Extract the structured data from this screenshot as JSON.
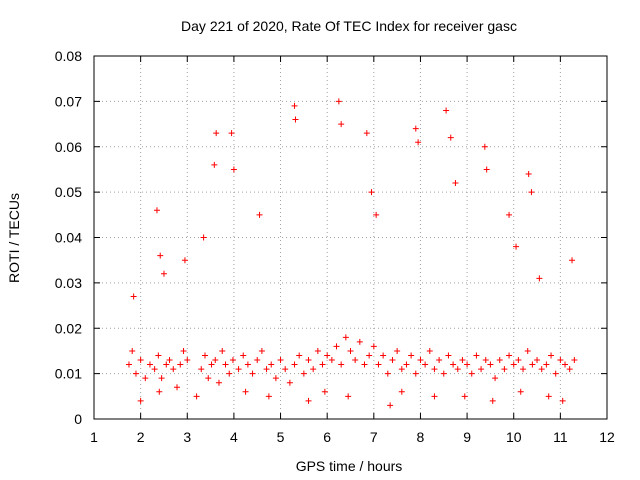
{
  "chart_data": {
    "type": "scatter",
    "title": "Day 221 of 2020, Rate Of TEC Index for receiver gasc",
    "xlabel": "GPS time / hours",
    "ylabel": "ROTI / TECUs",
    "xlim": [
      1,
      12
    ],
    "ylim": [
      0,
      0.08
    ],
    "x_ticks": [
      1,
      2,
      3,
      4,
      5,
      6,
      7,
      8,
      9,
      10,
      11,
      12
    ],
    "x_tick_labels": [
      "1",
      "2",
      "3",
      "4",
      "5",
      "6",
      "7",
      "8",
      "9",
      "10",
      "11",
      "12"
    ],
    "y_ticks": [
      0,
      0.01,
      0.02,
      0.03,
      0.04,
      0.05,
      0.06,
      0.07,
      0.08
    ],
    "y_tick_labels": [
      "0",
      "0.01",
      "0.02",
      "0.03",
      "0.04",
      "0.05",
      "0.06",
      "0.07",
      "0.08"
    ],
    "grid": true,
    "marker": "+",
    "color": "#ff0000",
    "series": [
      {
        "name": "ROTI",
        "x": [
          1.75,
          1.82,
          1.9,
          2.0,
          2.1,
          2.2,
          2.3,
          2.38,
          2.45,
          2.55,
          2.62,
          2.7,
          2.78,
          2.85,
          2.92,
          3.0,
          3.3,
          3.38,
          3.45,
          3.52,
          3.6,
          3.68,
          3.75,
          3.82,
          3.9,
          3.98,
          4.1,
          4.2,
          4.3,
          4.4,
          4.5,
          4.6,
          4.7,
          4.8,
          4.9,
          5.0,
          5.1,
          5.2,
          5.3,
          5.4,
          5.5,
          5.6,
          5.7,
          5.8,
          5.9,
          6.0,
          6.1,
          6.2,
          6.3,
          6.4,
          6.5,
          6.6,
          6.7,
          6.8,
          6.9,
          7.0,
          7.1,
          7.2,
          7.3,
          7.4,
          7.5,
          7.6,
          7.7,
          7.8,
          7.9,
          8.0,
          8.1,
          8.2,
          8.3,
          8.4,
          8.5,
          8.6,
          8.7,
          8.8,
          8.9,
          9.0,
          9.1,
          9.2,
          9.3,
          9.4,
          9.5,
          9.6,
          9.7,
          9.8,
          9.9,
          10.0,
          10.1,
          10.2,
          10.3,
          10.4,
          10.5,
          10.6,
          10.7,
          10.8,
          10.9,
          11.0,
          11.1,
          11.2,
          11.3,
          1.85,
          2.35,
          2.42,
          2.5,
          2.95,
          3.35,
          3.58,
          3.62,
          3.95,
          4.0,
          4.55,
          5.3,
          5.32,
          6.25,
          6.3,
          6.85,
          6.95,
          7.05,
          7.9,
          7.95,
          8.55,
          8.65,
          8.75,
          9.38,
          9.42,
          9.9,
          10.05,
          10.32,
          10.38,
          10.55,
          11.25,
          2.0,
          2.4,
          3.2,
          4.25,
          4.75,
          5.6,
          5.95,
          6.45,
          7.35,
          7.6,
          8.3,
          8.95,
          9.55,
          10.15,
          10.75,
          11.05
        ],
        "y": [
          0.012,
          0.015,
          0.01,
          0.013,
          0.009,
          0.012,
          0.011,
          0.014,
          0.009,
          0.012,
          0.013,
          0.011,
          0.007,
          0.012,
          0.015,
          0.013,
          0.011,
          0.014,
          0.009,
          0.012,
          0.013,
          0.008,
          0.015,
          0.012,
          0.01,
          0.013,
          0.011,
          0.014,
          0.012,
          0.01,
          0.013,
          0.015,
          0.011,
          0.012,
          0.009,
          0.013,
          0.011,
          0.008,
          0.012,
          0.014,
          0.01,
          0.013,
          0.011,
          0.015,
          0.012,
          0.014,
          0.013,
          0.016,
          0.012,
          0.018,
          0.015,
          0.013,
          0.017,
          0.012,
          0.014,
          0.016,
          0.012,
          0.014,
          0.01,
          0.013,
          0.015,
          0.011,
          0.012,
          0.014,
          0.01,
          0.013,
          0.012,
          0.015,
          0.011,
          0.013,
          0.01,
          0.014,
          0.012,
          0.011,
          0.013,
          0.012,
          0.01,
          0.014,
          0.011,
          0.013,
          0.012,
          0.009,
          0.013,
          0.011,
          0.014,
          0.012,
          0.013,
          0.011,
          0.015,
          0.012,
          0.013,
          0.011,
          0.012,
          0.014,
          0.01,
          0.013,
          0.012,
          0.011,
          0.013,
          0.027,
          0.046,
          0.036,
          0.032,
          0.035,
          0.04,
          0.056,
          0.063,
          0.063,
          0.055,
          0.045,
          0.069,
          0.066,
          0.07,
          0.065,
          0.063,
          0.05,
          0.045,
          0.064,
          0.061,
          0.068,
          0.062,
          0.052,
          0.06,
          0.055,
          0.045,
          0.038,
          0.054,
          0.05,
          0.031,
          0.035,
          0.004,
          0.006,
          0.005,
          0.006,
          0.005,
          0.004,
          0.006,
          0.005,
          0.003,
          0.006,
          0.005,
          0.005,
          0.004,
          0.006,
          0.005,
          0.004
        ]
      }
    ]
  }
}
